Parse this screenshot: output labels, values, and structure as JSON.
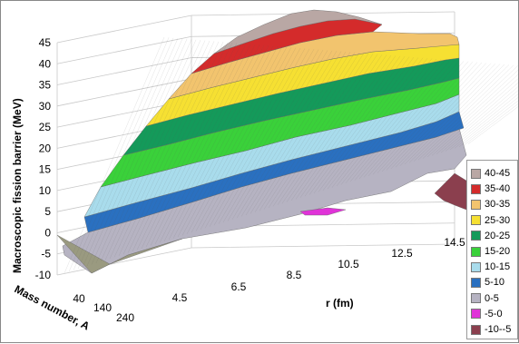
{
  "chart_data": {
    "type": "surface",
    "zlabel": "Macroscopic fission barrier (MeV)",
    "xlabel": "r (fm)",
    "ylabel": "Mass number, A",
    "z_ticks": [
      "45",
      "40",
      "35",
      "30",
      "25",
      "20",
      "15",
      "10",
      "5",
      "0",
      "-5",
      "-10"
    ],
    "z_range": [
      -10,
      45
    ],
    "x_ticks": [
      "4.5",
      "6.5",
      "8.5",
      "10.5",
      "12.5",
      "14.5"
    ],
    "y_ticks": [
      "40",
      "140",
      "240"
    ],
    "legend": [
      {
        "label": "40-45",
        "color": "#b9a7a4"
      },
      {
        "label": "35-40",
        "color": "#d42b2b"
      },
      {
        "label": "30-35",
        "color": "#f2c46e"
      },
      {
        "label": "25-30",
        "color": "#f6e032"
      },
      {
        "label": "20-25",
        "color": "#149a5a"
      },
      {
        "label": "15-20",
        "color": "#3ad13a"
      },
      {
        "label": "10-15",
        "color": "#a9dcec"
      },
      {
        "label": "5-10",
        "color": "#2a70c0"
      },
      {
        "label": "0-5",
        "color": "#b6b3c2"
      },
      {
        "label": "-5-0",
        "color": "#e033d8"
      },
      {
        "label": "-10--5",
        "color": "#8b3f4e"
      }
    ]
  }
}
